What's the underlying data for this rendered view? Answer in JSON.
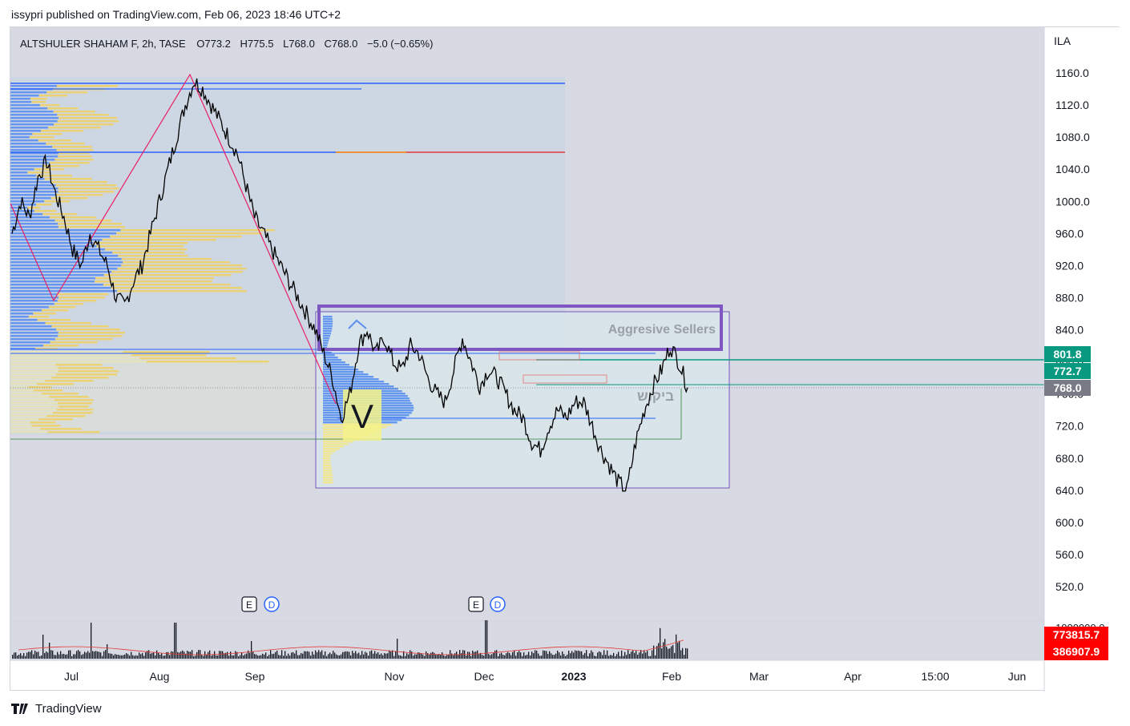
{
  "header": {
    "published": "issypri published on TradingView.com, Feb 06, 2023 18:46 UTC+2"
  },
  "legend": {
    "symbol": "ALTSHULER SHAHAM F, 2h, TASE",
    "open": "O773.2",
    "high": "H775.5",
    "low": "L768.0",
    "close": "C768.0",
    "change": "−5.0 (−0.65%)"
  },
  "price_axis": {
    "currency": "ILA",
    "ticks": [
      "1160.0",
      "1120.0",
      "1080.0",
      "1040.0",
      "1000.0",
      "960.0",
      "920.0",
      "880.0",
      "840.0",
      "800.0",
      "760.0",
      "720.0",
      "680.0",
      "640.0",
      "600.0",
      "560.0",
      "520.0"
    ],
    "labels": [
      {
        "text": "801.8",
        "value": 801.8,
        "color": "#089981"
      },
      {
        "text": "772.7",
        "value": 772.7,
        "color": "#089981"
      },
      {
        "text": "768.0",
        "value": 768.0,
        "color": "#787b86"
      }
    ]
  },
  "volume_axis": {
    "top_tick": "1000000.0",
    "labels": [
      {
        "text": "773815.7",
        "color": "#ff0000"
      },
      {
        "text": "386907.9",
        "color": "#ff0000"
      }
    ]
  },
  "time_axis": {
    "ticks": [
      "Jul",
      "Aug",
      "Sep",
      "Nov",
      "Dec",
      "2023",
      "Feb",
      "Mar",
      "Apr",
      "15:00",
      "Jun"
    ]
  },
  "annotations": {
    "aggressive_sellers": "Aggresive Sellers",
    "demand_hebrew": "ביקוש",
    "v_marker": "V",
    "event_e": "E",
    "event_d": "D"
  },
  "colors": {
    "bull_profile": "#5b8ff0",
    "bear_profile": "#f0d060",
    "zone_purple": "#7e57c2",
    "support_green": "#089981",
    "resistance_red": "#e53935",
    "zigzag": "#e91e63"
  },
  "chart_data": {
    "type": "line",
    "series": [
      {
        "values_ila": [
          960,
          1000,
          980,
          1030,
          1050,
          1010,
          980,
          940,
          920,
          960,
          940,
          920,
          880,
          870,
          900,
          920,
          960,
          1000,
          1040,
          1080,
          1120,
          1150,
          1140,
          1120,
          1100,
          1080,
          1060,
          1020,
          980,
          960,
          940,
          920,
          900,
          880,
          860,
          840,
          810,
          780,
          730,
          760,
          820,
          840,
          810,
          830,
          800,
          790,
          820,
          810,
          780,
          760,
          750,
          790,
          830,
          800,
          770,
          790,
          780,
          760,
          740,
          730,
          700,
          690,
          720,
          740,
          730,
          750,
          750,
          720,
          690,
          670,
          650,
          640,
          700,
          740,
          770,
          790,
          820,
          800,
          768
        ]
      }
    ],
    "ylim": [
      500,
      1180
    ],
    "horizontal_levels": [
      1150,
      1060,
      801.8,
      772.7,
      768.0
    ],
    "boxes": [
      {
        "label": "Aggresive Sellers",
        "y_range": [
          822,
          870
        ]
      },
      {
        "label": "ביקוש",
        "y_range": [
          642,
          866
        ]
      }
    ]
  },
  "footer": {
    "brand": "TradingView"
  }
}
